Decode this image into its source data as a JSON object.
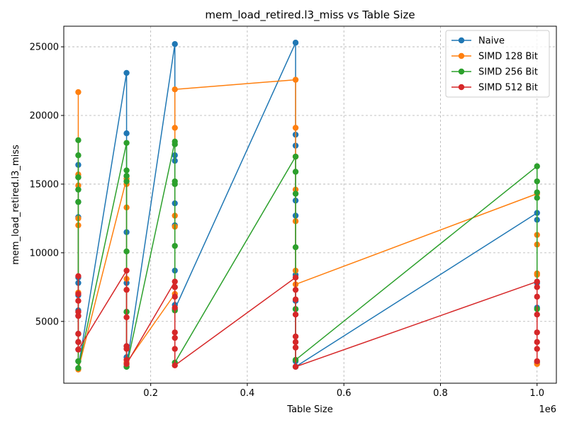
{
  "chart_data": {
    "type": "line",
    "title": "mem_load_retired.l3_miss vs Table Size",
    "xlabel": "Table Size",
    "ylabel": "mem_load_retired.l3_miss",
    "x_offset_text": "1e6",
    "x_scale": 1000000,
    "xlim": [
      20000,
      1040000
    ],
    "ylim": [
      500,
      26500
    ],
    "x_ticks": [
      200000,
      400000,
      600000,
      800000,
      1000000
    ],
    "x_tick_labels": [
      "0.2",
      "0.4",
      "0.6",
      "0.8",
      "1.0"
    ],
    "y_ticks": [
      5000,
      10000,
      15000,
      20000,
      25000
    ],
    "y_tick_labels": [
      "5000",
      "10000",
      "15000",
      "20000",
      "25000"
    ],
    "grid": true,
    "legend_position": "upper right",
    "series": [
      {
        "name": "Naive",
        "color": "#1f77b4",
        "points": [
          [
            50000,
            16400
          ],
          [
            50000,
            15500
          ],
          [
            50000,
            14600
          ],
          [
            50000,
            13700
          ],
          [
            50000,
            12600
          ],
          [
            50000,
            8200
          ],
          [
            50000,
            7800
          ],
          [
            50000,
            6900
          ],
          [
            50000,
            5800
          ],
          [
            50000,
            5400
          ],
          [
            50000,
            4100
          ],
          [
            50000,
            3500
          ],
          [
            50000,
            2950
          ],
          [
            50000,
            2100
          ],
          [
            50000,
            1600
          ],
          [
            150000,
            23100
          ],
          [
            150000,
            18700
          ],
          [
            150000,
            15600
          ],
          [
            150000,
            11500
          ],
          [
            150000,
            7800
          ],
          [
            150000,
            5700
          ],
          [
            150000,
            3200
          ],
          [
            150000,
            2400
          ],
          [
            150000,
            1700
          ],
          [
            250000,
            25200
          ],
          [
            250000,
            17100
          ],
          [
            250000,
            16700
          ],
          [
            250000,
            13600
          ],
          [
            250000,
            12000
          ],
          [
            250000,
            8700
          ],
          [
            250000,
            7500
          ],
          [
            250000,
            6200
          ],
          [
            250000,
            5900
          ],
          [
            500000,
            25300
          ],
          [
            500000,
            18600
          ],
          [
            500000,
            17800
          ],
          [
            500000,
            13800
          ],
          [
            500000,
            12700
          ],
          [
            500000,
            8400
          ],
          [
            500000,
            6500
          ],
          [
            500000,
            5900
          ],
          [
            500000,
            2100
          ],
          [
            500000,
            1700
          ],
          [
            1000000,
            12900
          ],
          [
            1000000,
            12400
          ],
          [
            1000000,
            7800
          ],
          [
            1000000,
            6000
          ],
          [
            1000000,
            2000
          ]
        ]
      },
      {
        "name": "SIMD 128 Bit",
        "color": "#ff7f0e",
        "points": [
          [
            50000,
            21700
          ],
          [
            50000,
            15700
          ],
          [
            50000,
            14900
          ],
          [
            50000,
            12500
          ],
          [
            50000,
            12000
          ],
          [
            50000,
            7100
          ],
          [
            50000,
            1500
          ],
          [
            150000,
            15400
          ],
          [
            150000,
            15000
          ],
          [
            150000,
            13300
          ],
          [
            150000,
            8100
          ],
          [
            150000,
            7300
          ],
          [
            150000,
            2000
          ],
          [
            250000,
            7000
          ],
          [
            250000,
            11900
          ],
          [
            250000,
            12700
          ],
          [
            250000,
            19100
          ],
          [
            250000,
            21900
          ],
          [
            500000,
            22600
          ],
          [
            500000,
            19100
          ],
          [
            500000,
            17000
          ],
          [
            500000,
            14600
          ],
          [
            500000,
            12300
          ],
          [
            500000,
            8700
          ],
          [
            500000,
            7700
          ],
          [
            1000000,
            14300
          ],
          [
            1000000,
            11300
          ],
          [
            1000000,
            10600
          ],
          [
            1000000,
            8500
          ],
          [
            1000000,
            8400
          ],
          [
            1000000,
            1900
          ]
        ]
      },
      {
        "name": "SIMD 256 Bit",
        "color": "#2ca02c",
        "points": [
          [
            50000,
            18200
          ],
          [
            50000,
            17100
          ],
          [
            50000,
            15500
          ],
          [
            50000,
            14600
          ],
          [
            50000,
            13700
          ],
          [
            50000,
            2100
          ],
          [
            50000,
            1600
          ],
          [
            150000,
            18000
          ],
          [
            150000,
            16000
          ],
          [
            150000,
            15600
          ],
          [
            150000,
            15200
          ],
          [
            150000,
            10100
          ],
          [
            150000,
            5700
          ],
          [
            150000,
            1700
          ],
          [
            250000,
            18100
          ],
          [
            250000,
            17900
          ],
          [
            250000,
            15200
          ],
          [
            250000,
            15000
          ],
          [
            250000,
            10500
          ],
          [
            250000,
            5800
          ],
          [
            250000,
            2000
          ],
          [
            500000,
            17000
          ],
          [
            500000,
            15900
          ],
          [
            500000,
            14300
          ],
          [
            500000,
            10400
          ],
          [
            500000,
            5900
          ],
          [
            500000,
            2200
          ],
          [
            1000000,
            16300
          ],
          [
            1000000,
            15200
          ],
          [
            1000000,
            14400
          ],
          [
            1000000,
            14000
          ],
          [
            1000000,
            5900
          ]
        ]
      },
      {
        "name": "SIMD 512 Bit",
        "color": "#d62728",
        "points": [
          [
            50000,
            8300
          ],
          [
            50000,
            7000
          ],
          [
            50000,
            6500
          ],
          [
            50000,
            5700
          ],
          [
            50000,
            5400
          ],
          [
            50000,
            4100
          ],
          [
            50000,
            3500
          ],
          [
            50000,
            2950
          ],
          [
            150000,
            8700
          ],
          [
            150000,
            7300
          ],
          [
            150000,
            5300
          ],
          [
            150000,
            3200
          ],
          [
            150000,
            3000
          ],
          [
            150000,
            2200
          ],
          [
            150000,
            1900
          ],
          [
            250000,
            7900
          ],
          [
            250000,
            7500
          ],
          [
            250000,
            6800
          ],
          [
            250000,
            6000
          ],
          [
            250000,
            4200
          ],
          [
            250000,
            3800
          ],
          [
            250000,
            3000
          ],
          [
            250000,
            1800
          ],
          [
            500000,
            8200
          ],
          [
            500000,
            7300
          ],
          [
            500000,
            6600
          ],
          [
            500000,
            5500
          ],
          [
            500000,
            3900
          ],
          [
            500000,
            3500
          ],
          [
            500000,
            3100
          ],
          [
            500000,
            1700
          ],
          [
            1000000,
            7900
          ],
          [
            1000000,
            7500
          ],
          [
            1000000,
            6800
          ],
          [
            1000000,
            5500
          ],
          [
            1000000,
            4200
          ],
          [
            1000000,
            3500
          ],
          [
            1000000,
            3000
          ],
          [
            1000000,
            2100
          ]
        ]
      }
    ]
  }
}
